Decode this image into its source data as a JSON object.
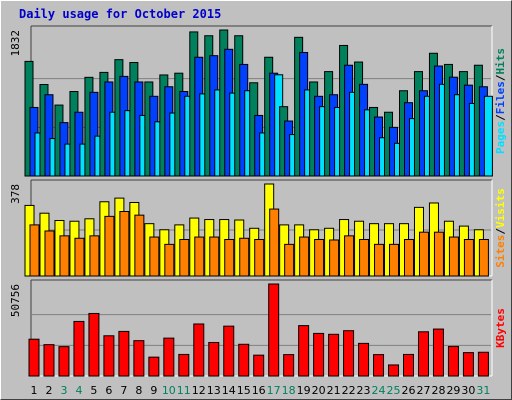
{
  "title": "Daily usage for October 2015",
  "colors": {
    "hits": "#00805c",
    "files": "#0040ff",
    "pages": "#00e0ff",
    "visits": "#ffff00",
    "sites": "#ff8000",
    "kbytes": "#ff0000",
    "weekend_label": "#00805c",
    "weekday_label": "#000000"
  },
  "chart_data": [
    {
      "type": "bar",
      "panel": "hits-files-pages",
      "ytick_label": "1832",
      "ylim": [
        0,
        1832
      ],
      "categories": [
        "1",
        "2",
        "3",
        "4",
        "5",
        "6",
        "7",
        "8",
        "9",
        "10",
        "11",
        "12",
        "13",
        "14",
        "15",
        "16",
        "17",
        "18",
        "19",
        "20",
        "21",
        "22",
        "23",
        "24",
        "25",
        "26",
        "27",
        "28",
        "29",
        "30",
        "31"
      ],
      "weekend_days": [
        "3",
        "4",
        "10",
        "11",
        "17",
        "18",
        "24",
        "25",
        "31"
      ],
      "legend": [
        {
          "text": "Pages",
          "color_key": "pages"
        },
        {
          "text": "/",
          "color_key": "separator"
        },
        {
          "text": "Files",
          "color_key": "files"
        },
        {
          "text": "/",
          "color_key": "separator"
        },
        {
          "text": "Hits",
          "color_key": "hits"
        }
      ],
      "series": [
        {
          "name": "Hits",
          "color_key": "hits",
          "values": [
            1438,
            1148,
            890,
            1060,
            1238,
            1300,
            1460,
            1424,
            1180,
            1268,
            1290,
            1808,
            1760,
            1832,
            1760,
            1170,
            1490,
            870,
            1740,
            1180,
            1310,
            1638,
            1430,
            860,
            800,
            1070,
            1310,
            1540,
            1400,
            1310,
            1390
          ]
        },
        {
          "name": "Files",
          "color_key": "files",
          "values": [
            860,
            1020,
            670,
            800,
            1050,
            1180,
            1250,
            1180,
            1000,
            1120,
            1060,
            1490,
            1510,
            1590,
            1400,
            760,
            1290,
            690,
            1550,
            1000,
            1020,
            1390,
            1150,
            740,
            610,
            920,
            1070,
            1380,
            1240,
            1140,
            1120
          ]
        },
        {
          "name": "Pages",
          "color_key": "pages",
          "values": [
            540,
            470,
            400,
            400,
            500,
            800,
            820,
            760,
            680,
            790,
            1000,
            1030,
            1080,
            1040,
            1070,
            540,
            1270,
            520,
            1080,
            870,
            860,
            1050,
            830,
            480,
            410,
            720,
            1000,
            1150,
            1020,
            910,
            1000
          ]
        }
      ]
    },
    {
      "type": "bar",
      "panel": "visits-sites",
      "ytick_label": "378",
      "ylim": [
        0,
        378
      ],
      "categories": [
        "1",
        "2",
        "3",
        "4",
        "5",
        "6",
        "7",
        "8",
        "9",
        "10",
        "11",
        "12",
        "13",
        "14",
        "15",
        "16",
        "17",
        "18",
        "19",
        "20",
        "21",
        "22",
        "23",
        "24",
        "25",
        "26",
        "27",
        "28",
        "29",
        "30",
        "31"
      ],
      "legend": [
        {
          "text": "Sites",
          "color_key": "sites"
        },
        {
          "text": "/",
          "color_key": "separator"
        },
        {
          "text": "Visits",
          "color_key": "visits"
        }
      ],
      "series": [
        {
          "name": "Visits",
          "color_key": "visits",
          "values": [
            290,
            258,
            228,
            225,
            235,
            305,
            320,
            302,
            215,
            190,
            210,
            238,
            232,
            232,
            230,
            196,
            378,
            210,
            210,
            190,
            196,
            232,
            225,
            215,
            215,
            215,
            282,
            300,
            225,
            205,
            190
          ]
        },
        {
          "name": "Sites",
          "color_key": "sites",
          "values": [
            210,
            185,
            165,
            155,
            165,
            245,
            265,
            250,
            160,
            130,
            150,
            160,
            160,
            150,
            155,
            150,
            275,
            130,
            160,
            150,
            148,
            165,
            150,
            130,
            130,
            150,
            180,
            180,
            160,
            150,
            150
          ]
        }
      ]
    },
    {
      "type": "bar",
      "panel": "kbytes",
      "ytick_label": "50756",
      "ylim": [
        0,
        50756
      ],
      "categories": [
        "1",
        "2",
        "3",
        "4",
        "5",
        "6",
        "7",
        "8",
        "9",
        "10",
        "11",
        "12",
        "13",
        "14",
        "15",
        "16",
        "17",
        "18",
        "19",
        "20",
        "21",
        "22",
        "23",
        "24",
        "25",
        "26",
        "27",
        "28",
        "29",
        "30",
        "31"
      ],
      "legend": [
        {
          "text": "KBytes",
          "color_key": "kbytes"
        }
      ],
      "series": [
        {
          "name": "KBytes",
          "color_key": "kbytes",
          "values": [
            20300,
            17300,
            16200,
            30100,
            34500,
            22200,
            24600,
            19500,
            10400,
            20900,
            11900,
            28700,
            18500,
            27500,
            17500,
            11500,
            50756,
            11800,
            27800,
            23500,
            23000,
            25000,
            18000,
            11800,
            6100,
            11900,
            24400,
            25900,
            16300,
            12900,
            13100
          ]
        }
      ]
    }
  ]
}
